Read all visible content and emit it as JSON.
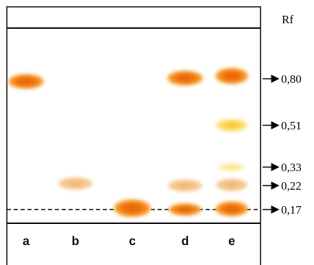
{
  "header": {
    "title": "Rf"
  },
  "lanes": [
    {
      "label": "a"
    },
    {
      "label": "b"
    },
    {
      "label": "c"
    },
    {
      "label": "d"
    },
    {
      "label": "e"
    }
  ],
  "rf_markers": [
    {
      "label": "0,80"
    },
    {
      "label": "0,51"
    },
    {
      "label": "0,33"
    },
    {
      "label": "0,22"
    },
    {
      "label": "0,17"
    }
  ]
}
